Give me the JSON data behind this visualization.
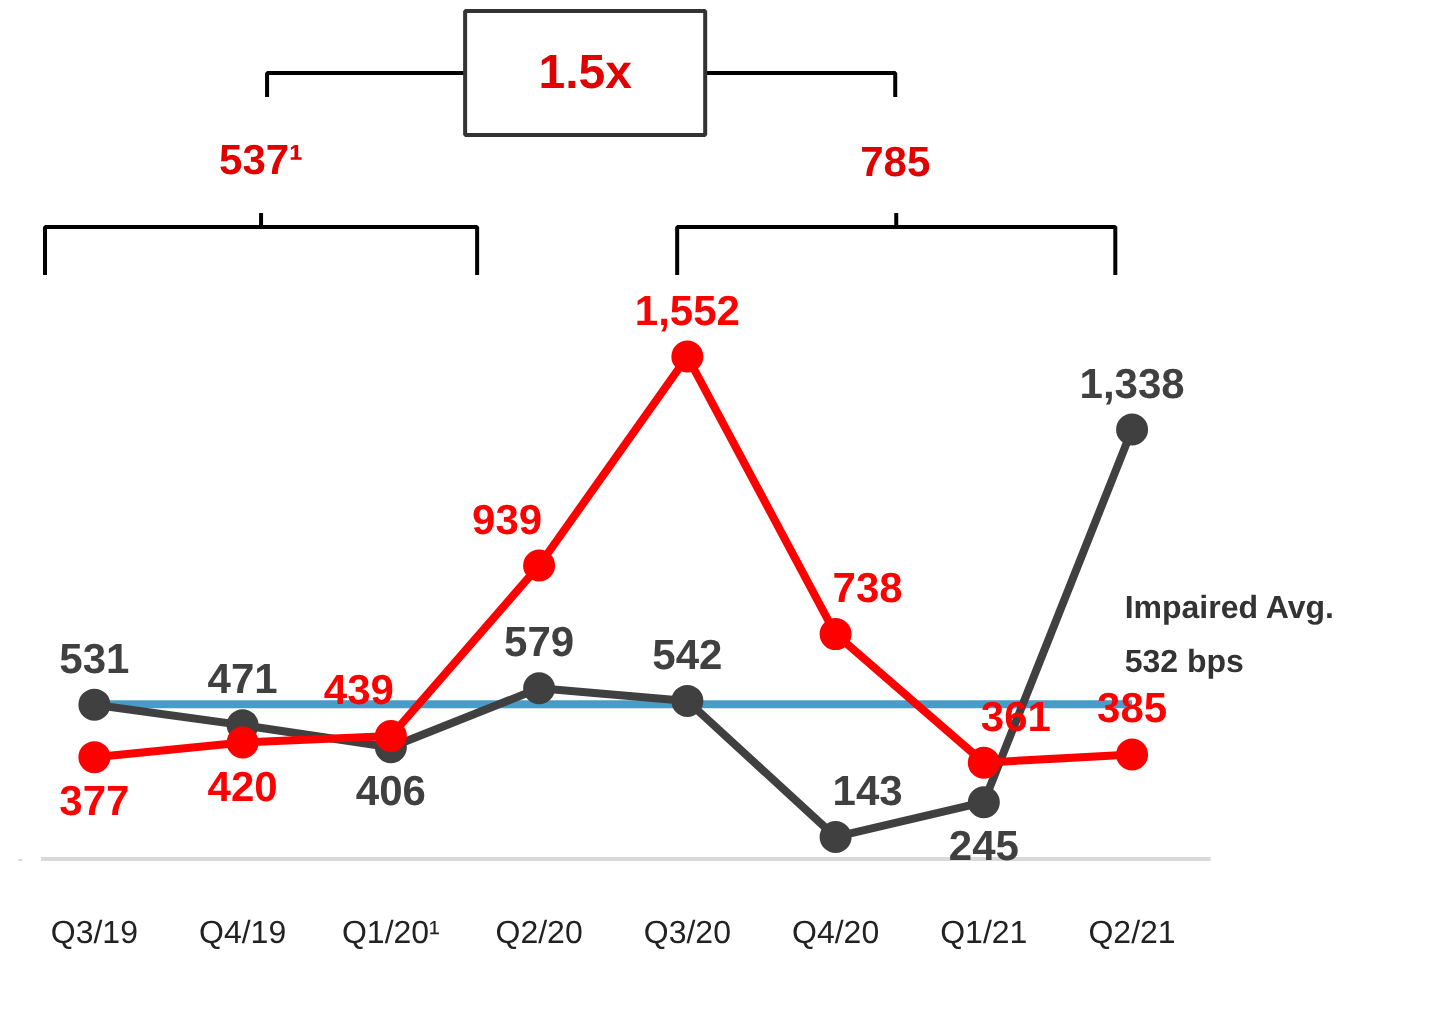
{
  "chart_data": {
    "type": "line",
    "categories": [
      "Q3/19",
      "Q4/19",
      "Q1/20¹",
      "Q2/20",
      "Q3/20",
      "Q4/20",
      "Q1/21",
      "Q2/21"
    ],
    "series": [
      {
        "color": "#404040",
        "values": [
          531,
          471,
          406,
          579,
          542,
          143,
          245,
          1338
        ],
        "value_labels": [
          "531",
          "471",
          "406",
          "579",
          "542",
          "143",
          "245",
          "1,338"
        ]
      },
      {
        "color": "#ff0000",
        "values": [
          377,
          420,
          439,
          939,
          1552,
          738,
          361,
          385
        ],
        "value_labels": [
          "377",
          "420",
          "439",
          "939",
          "1,552",
          "738",
          "361",
          "385"
        ]
      }
    ],
    "ref_lines": [
      {
        "axis": "y",
        "value": 532,
        "label": "Impaired Avg.\n532 bps",
        "color": "#4a9cc8"
      }
    ],
    "annotations": [
      "1.5x",
      "537¹",
      "785"
    ],
    "marker": "circle",
    "line_style": "solid",
    "grid": false
  }
}
